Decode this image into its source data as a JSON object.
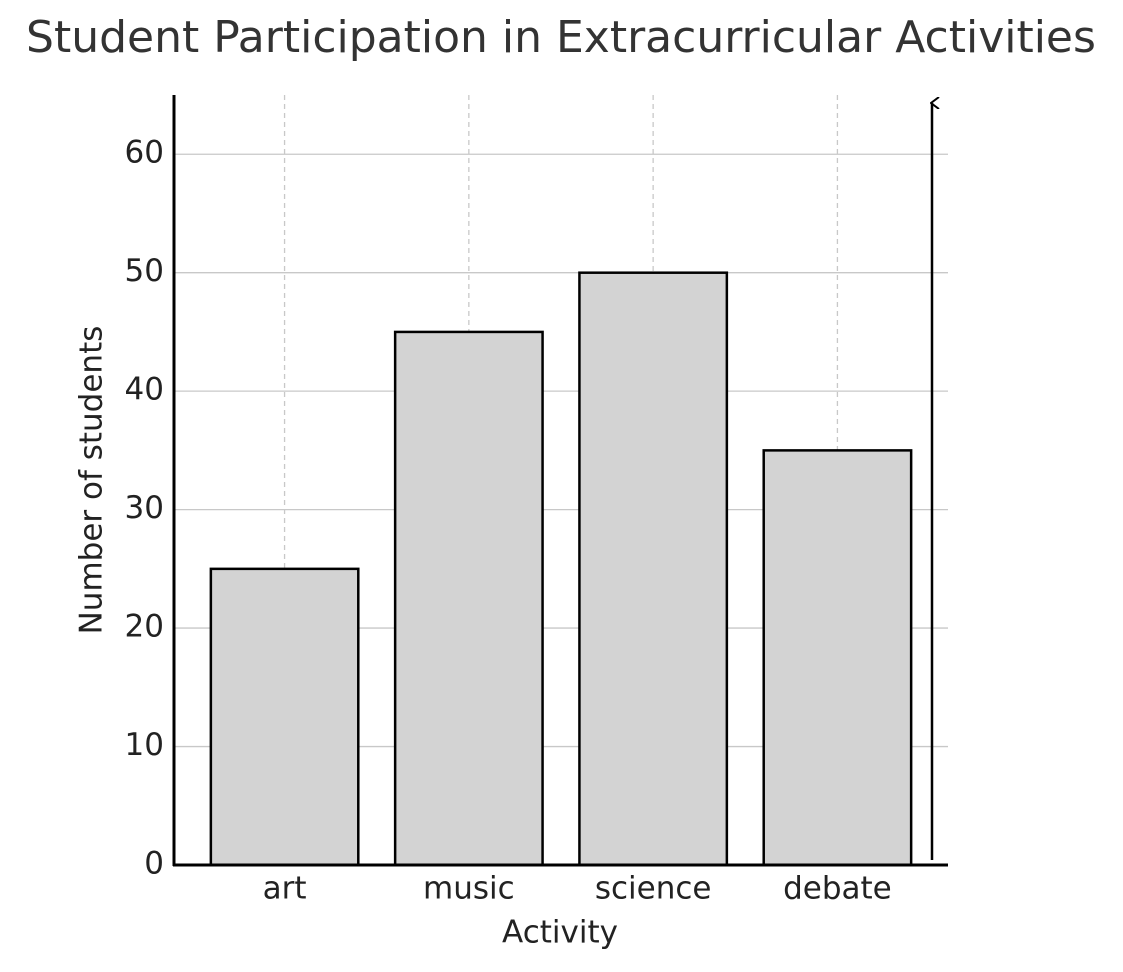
{
  "chart_data": {
    "type": "bar",
    "title": "Student Participation in Extracurricular Activities",
    "x_label": "Activity",
    "y_label": "Number of students",
    "categories": [
      "art",
      "music",
      "science",
      "debate"
    ],
    "values": [
      25,
      45,
      50,
      35
    ],
    "color": "#d3d3d3",
    "ylim": [
      0,
      65
    ],
    "yticks": [
      0,
      10,
      20,
      30,
      40,
      50,
      60
    ],
    "grid": true
  }
}
